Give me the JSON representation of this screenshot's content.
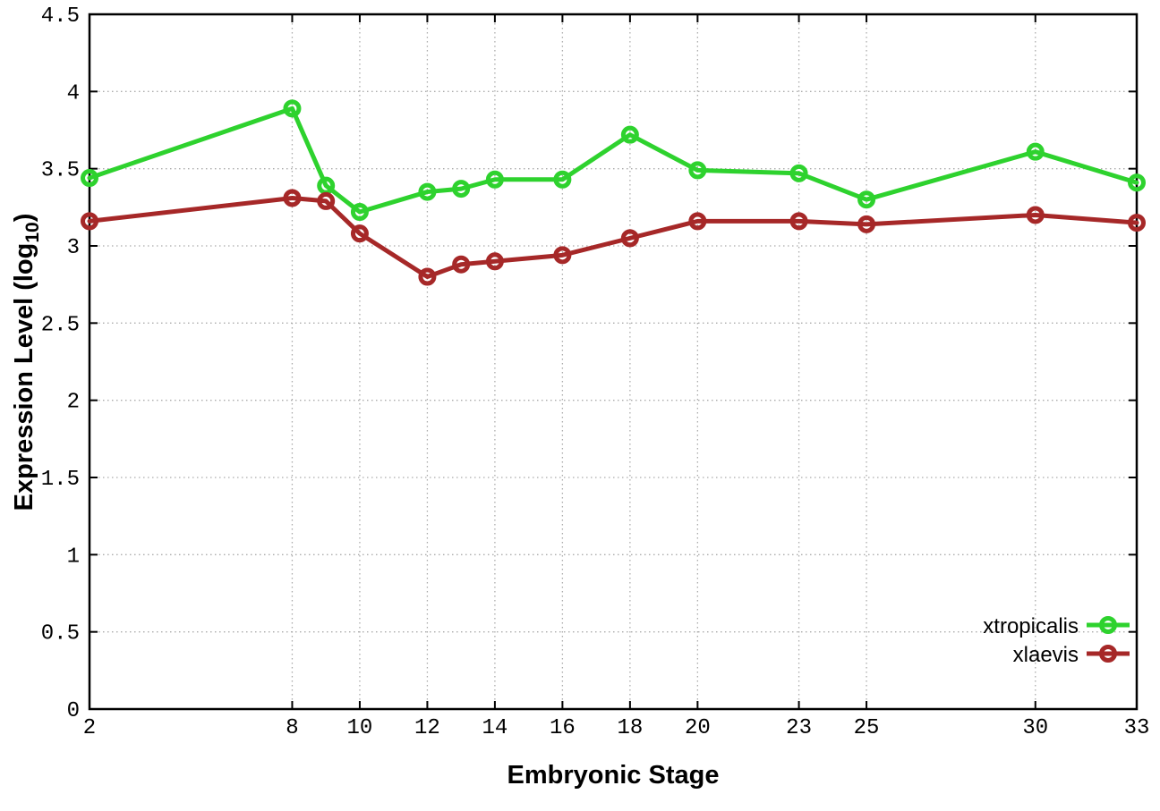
{
  "chart_data": {
    "type": "line",
    "x": [
      2,
      8,
      9,
      10,
      12,
      13,
      14,
      16,
      18,
      20,
      23,
      25,
      30,
      33
    ],
    "series": [
      {
        "name": "xtropicalis",
        "color": "#2ed22e",
        "values": [
          3.44,
          3.89,
          3.39,
          3.22,
          3.35,
          3.37,
          3.43,
          3.43,
          3.72,
          3.49,
          3.47,
          3.3,
          3.61,
          3.41
        ]
      },
      {
        "name": "xlaevis",
        "color": "#a62828",
        "values": [
          3.16,
          3.31,
          3.29,
          3.08,
          2.8,
          2.88,
          2.9,
          2.94,
          3.05,
          3.16,
          3.16,
          3.14,
          3.2,
          3.15
        ]
      }
    ],
    "title": "",
    "xlabel": "Embryonic Stage",
    "ylabel": "Expression Level (log10)",
    "ylabel_parts": {
      "main": "Expression Level (log",
      "sub": "10",
      "close": ")"
    },
    "xlim": [
      2,
      33
    ],
    "ylim": [
      0,
      4.5
    ],
    "xticks": [
      2,
      8,
      10,
      12,
      14,
      16,
      18,
      20,
      23,
      25,
      30,
      33
    ],
    "xtick_labels": [
      "2",
      "8",
      "10",
      "12",
      "14",
      "16",
      "18",
      "20",
      "23",
      "25",
      "30",
      "33"
    ],
    "yticks": [
      0,
      0.5,
      1,
      1.5,
      2,
      2.5,
      3,
      3.5,
      4,
      4.5
    ],
    "ytick_labels": [
      "0",
      "0.5",
      "1",
      "1.5",
      "2",
      "2.5",
      "3",
      "3.5",
      "4",
      "4.5"
    ],
    "grid": true,
    "grid_style": "dotted",
    "legend_position": "bottom-right",
    "marker": "open-circle",
    "colors": {
      "background": "#ffffff",
      "axis": "#000000",
      "grid": "#ababab",
      "text": "#000000"
    }
  }
}
